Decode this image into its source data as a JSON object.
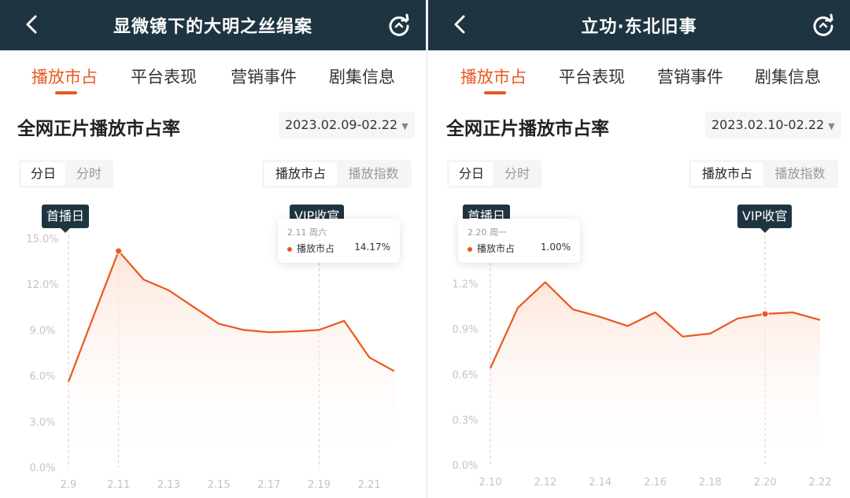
{
  "colors": {
    "accent": "#e9581f",
    "topbar": "#1f3441",
    "tag": "#1f3441"
  },
  "left": {
    "title": "显微镜下的大明之丝绢案",
    "tabs": [
      "播放市占",
      "平台表现",
      "营销事件",
      "剧集信息"
    ],
    "active_tab": "播放市占",
    "section_title": "全网正片播放市占率",
    "date_range": "2023.02.09-02.22",
    "day_toggle": [
      "分日",
      "分时"
    ],
    "metric_toggle": [
      "播放市占",
      "播放指数"
    ],
    "premiere_tag": "首播日",
    "vip_tag": "VIP收官",
    "tooltip": {
      "date": "2.11  周六",
      "label": "播放市占",
      "value": "14.17%"
    }
  },
  "right": {
    "title": "立功·东北旧事",
    "tabs": [
      "播放市占",
      "平台表现",
      "营销事件",
      "剧集信息"
    ],
    "active_tab": "播放市占",
    "section_title": "全网正片播放市占率",
    "date_range": "2023.02.10-02.22",
    "day_toggle": [
      "分日",
      "分时"
    ],
    "metric_toggle": [
      "播放市占",
      "播放指数"
    ],
    "premiere_tag": "首播日",
    "vip_tag": "VIP收官",
    "tooltip": {
      "date": "2.20  周一",
      "label": "播放市占",
      "value": "1.00%"
    }
  },
  "chart_data": [
    {
      "type": "area",
      "title": "全网正片播放市占率",
      "x": [
        "2.9",
        "2.10",
        "2.11",
        "2.12",
        "2.13",
        "2.14",
        "2.15",
        "2.16",
        "2.17",
        "2.18",
        "2.19",
        "2.20",
        "2.21",
        "2.22"
      ],
      "x_tick_labels": [
        "2.9",
        "2.11",
        "2.13",
        "2.15",
        "2.17",
        "2.19",
        "2.21"
      ],
      "y_tick_labels": [
        "0.0%",
        "3.0%",
        "6.0%",
        "9.0%",
        "12.0%",
        "15.0%"
      ],
      "ylim": [
        0,
        15
      ],
      "series": [
        {
          "values": [
            5.6,
            9.9,
            14.17,
            12.3,
            11.6,
            10.5,
            9.4,
            9.0,
            8.85,
            8.9,
            9.0,
            9.6,
            7.2,
            6.3
          ]
        }
      ],
      "markers": {
        "premiere": "2.9",
        "vip_finale": "2.19",
        "highlight": "2.11"
      },
      "grid": false
    },
    {
      "type": "area",
      "title": "全网正片播放市占率",
      "x": [
        "2.10",
        "2.11",
        "2.12",
        "2.13",
        "2.14",
        "2.15",
        "2.16",
        "2.17",
        "2.18",
        "2.19",
        "2.20",
        "2.21",
        "2.22"
      ],
      "x_tick_labels": [
        "2.10",
        "2.12",
        "2.14",
        "2.16",
        "2.18",
        "2.20",
        "2.22"
      ],
      "y_tick_labels": [
        "0.0%",
        "0.3%",
        "0.6%",
        "0.9%",
        "1.2%",
        "1"
      ],
      "ylim": [
        0,
        1.5
      ],
      "series": [
        {
          "values": [
            0.64,
            1.04,
            1.21,
            1.03,
            0.98,
            0.92,
            1.01,
            0.85,
            0.87,
            0.97,
            1.0,
            1.01,
            0.96
          ]
        }
      ],
      "markers": {
        "premiere": "2.10",
        "vip_finale": "2.20",
        "highlight": "2.20"
      },
      "grid": false
    }
  ]
}
